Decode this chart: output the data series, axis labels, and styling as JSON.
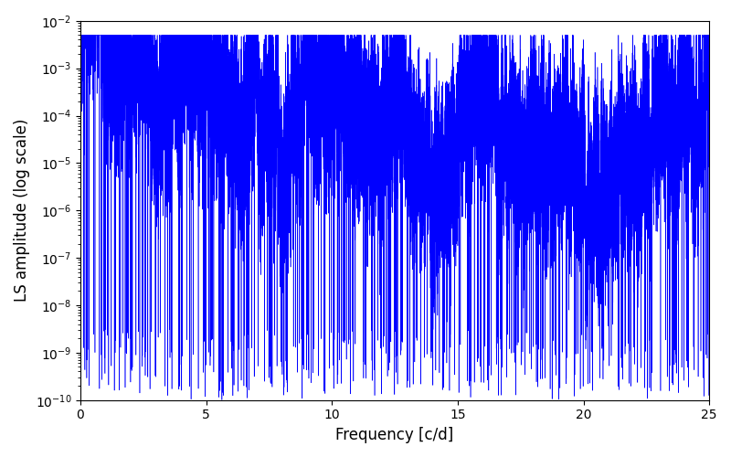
{
  "title": "",
  "xlabel": "Frequency [c/d]",
  "ylabel": "LS amplitude (log scale)",
  "xlim": [
    0,
    25
  ],
  "ylim": [
    1e-10,
    0.01
  ],
  "line_color": "#0000ff",
  "background_color": "#ffffff",
  "freq_max": 25.0,
  "num_points": 100000,
  "seed": 42,
  "figsize": [
    8.0,
    5.0
  ],
  "dpi": 100,
  "linewidth": 0.4
}
